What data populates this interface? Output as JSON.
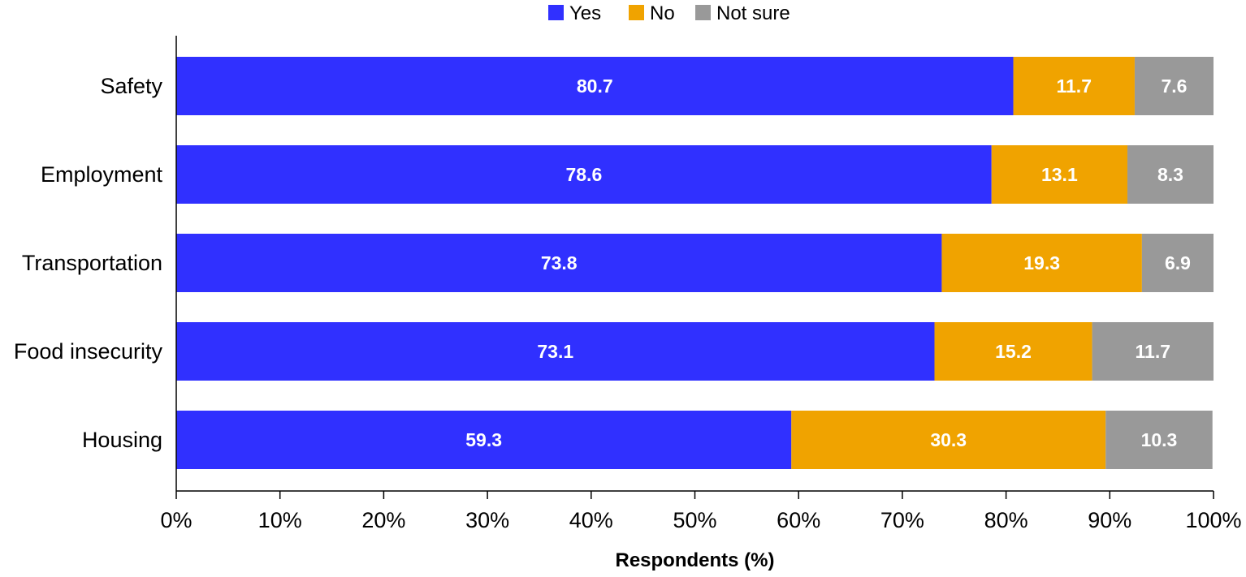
{
  "chart_data": {
    "type": "bar",
    "orientation": "horizontal",
    "stacked": true,
    "categories": [
      "Safety",
      "Employment",
      "Transportation",
      "Food insecurity",
      "Housing"
    ],
    "series": [
      {
        "name": "Yes",
        "color": "#3030ff",
        "values": [
          80.7,
          78.6,
          73.8,
          73.1,
          59.3
        ],
        "labels": [
          "80.7",
          "78.6",
          "73.8",
          "73.1",
          "59.3"
        ]
      },
      {
        "name": "No",
        "color": "#f0a300",
        "values": [
          11.7,
          13.1,
          19.3,
          15.2,
          30.3
        ],
        "labels": [
          "11.7",
          "13.1",
          "19.3",
          "15.2",
          "30.3"
        ]
      },
      {
        "name": "Not sure",
        "color": "#999999",
        "values": [
          7.6,
          8.3,
          6.9,
          11.7,
          10.3
        ],
        "labels": [
          "7.6",
          "8.3",
          "6.9",
          "11.7",
          "10.3"
        ]
      }
    ],
    "title": "",
    "xlabel": "Respondents (%)",
    "ylabel": "",
    "xlim": [
      0,
      100
    ],
    "xticks": [
      "0%",
      "10%",
      "20%",
      "30%",
      "40%",
      "50%",
      "60%",
      "70%",
      "80%",
      "90%",
      "100%"
    ],
    "legend": {
      "position": "top-center"
    },
    "grid": false
  }
}
